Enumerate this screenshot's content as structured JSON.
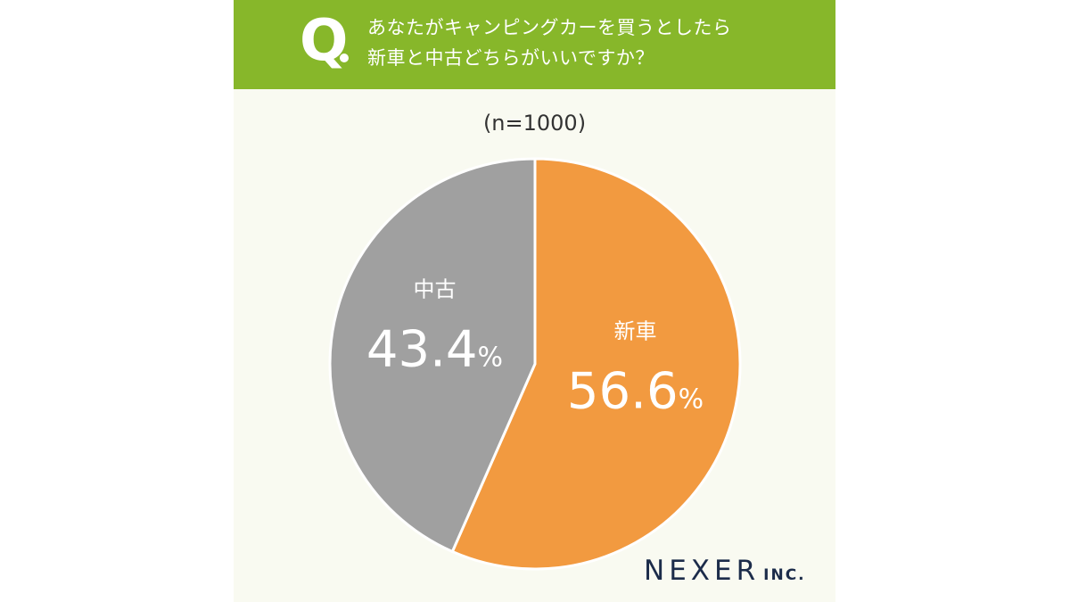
{
  "header": {
    "q_mark": "Q",
    "question_line1": "あなたがキャンピングカーを買うとしたら",
    "question_line2": "新車と中古どちらがいいですか？"
  },
  "sample_size": "(n=1000)",
  "logo": {
    "name": "NEXER",
    "suffix": "INC."
  },
  "colors": {
    "header": "#87b72a",
    "background": "#f9faf1",
    "new": "#f29a40",
    "used": "#a0a0a0"
  },
  "chart_data": {
    "type": "pie",
    "categories": [
      "新車",
      "中古"
    ],
    "values": [
      56.6,
      43.4
    ],
    "unit": "%",
    "colors": [
      "#f29a40",
      "#a0a0a0"
    ],
    "title": "あなたがキャンピングカーを買うとしたら新車と中古どちらがいいですか？"
  }
}
